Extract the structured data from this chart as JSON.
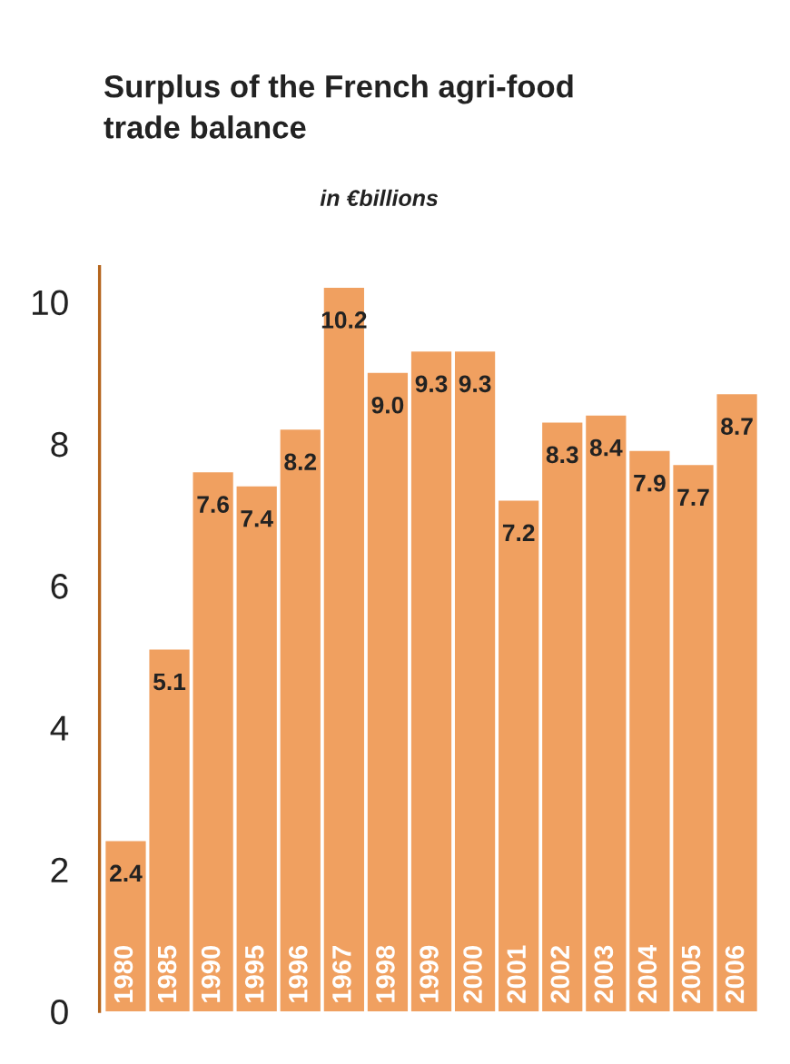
{
  "chart_data": {
    "type": "bar",
    "title": "Surplus of the French agri-food\ntrade balance",
    "subtitle": "in €billions",
    "categories": [
      "1980",
      "1985",
      "1990",
      "1995",
      "1996",
      "1967",
      "1998",
      "1999",
      "2000",
      "2001",
      "2002",
      "2003",
      "2004",
      "2005",
      "2006"
    ],
    "values": [
      2.4,
      5.1,
      7.6,
      7.4,
      8.2,
      10.2,
      9.0,
      9.3,
      9.3,
      7.2,
      8.3,
      8.4,
      7.9,
      7.7,
      8.7
    ],
    "value_labels": [
      "2.4",
      "5.1",
      "7.6",
      "7.4",
      "8.2",
      "10.2",
      "9.0",
      "9.3",
      "9.3",
      "7.2",
      "8.3",
      "8.4",
      "7.9",
      "7.7",
      "8.7"
    ],
    "color": "#f0a060",
    "ylim": [
      0,
      10.5
    ],
    "yticks": [
      0,
      2,
      4,
      6,
      8,
      10
    ],
    "grid": false,
    "legend": false
  }
}
